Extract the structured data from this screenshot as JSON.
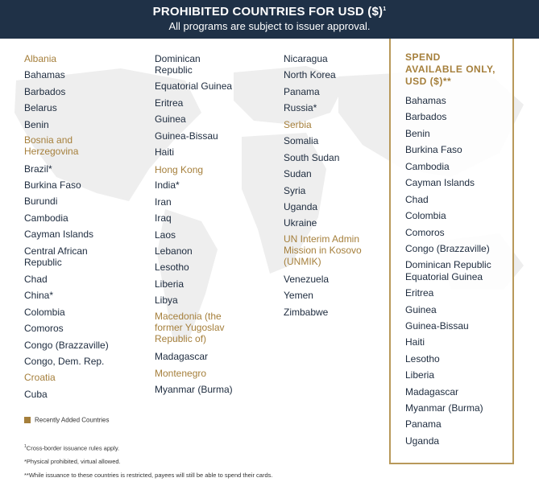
{
  "header": {
    "title": "PROHIBITED COUNTRIES FOR USD ($)",
    "title_mark": "1",
    "subtitle": "All programs are subject to issuer approval."
  },
  "colors": {
    "navy": "#1f3147",
    "gold": "#a57f3b",
    "text": "#1d2b3e"
  },
  "columns": [
    [
      {
        "name": "Albania",
        "recent": true
      },
      {
        "name": "Bahamas"
      },
      {
        "name": "Barbados"
      },
      {
        "name": "Belarus"
      },
      {
        "name": "Benin"
      },
      {
        "name": "Bosnia and Herzegovina",
        "recent": true
      },
      {
        "name": "Brazil*"
      },
      {
        "name": "Burkina Faso"
      },
      {
        "name": "Burundi"
      },
      {
        "name": "Cambodia"
      },
      {
        "name": "Cayman Islands"
      },
      {
        "name": "Central African Republic"
      },
      {
        "name": "Chad"
      },
      {
        "name": "China*"
      },
      {
        "name": "Colombia"
      },
      {
        "name": "Comoros"
      },
      {
        "name": "Congo (Brazzaville)"
      },
      {
        "name": "Congo, Dem. Rep."
      },
      {
        "name": "Croatia",
        "recent": true
      },
      {
        "name": "Cuba"
      }
    ],
    [
      {
        "name": "Dominican Republic"
      },
      {
        "name": "Equatorial Guinea"
      },
      {
        "name": "Eritrea"
      },
      {
        "name": "Guinea"
      },
      {
        "name": "Guinea-Bissau"
      },
      {
        "name": "Haiti"
      },
      {
        "name": "Hong Kong",
        "recent": true
      },
      {
        "name": "India*"
      },
      {
        "name": "Iran"
      },
      {
        "name": "Iraq"
      },
      {
        "name": "Laos"
      },
      {
        "name": "Lebanon"
      },
      {
        "name": "Lesotho"
      },
      {
        "name": "Liberia"
      },
      {
        "name": "Libya"
      },
      {
        "name": "Macedonia (the former Yugoslav Republic of)",
        "recent": true
      },
      {
        "name": "Madagascar"
      },
      {
        "name": "Montenegro",
        "recent": true
      },
      {
        "name": "Myanmar (Burma)"
      }
    ],
    [
      {
        "name": "Nicaragua"
      },
      {
        "name": "North Korea"
      },
      {
        "name": "Panama"
      },
      {
        "name": "Russia*"
      },
      {
        "name": "Serbia",
        "recent": true
      },
      {
        "name": "Somalia"
      },
      {
        "name": "South Sudan"
      },
      {
        "name": "Sudan"
      },
      {
        "name": "Syria"
      },
      {
        "name": "Uganda"
      },
      {
        "name": "Ukraine"
      },
      {
        "name": "UN Interim Admin Mission in Kosovo (UNMIK)",
        "recent": true
      },
      {
        "name": "Venezuela"
      },
      {
        "name": "Yemen"
      },
      {
        "name": "Zimbabwe"
      }
    ]
  ],
  "spend_only": {
    "heading_line1": "SPEND",
    "heading_line2": "AVAILABLE ONLY,",
    "heading_line3": "USD ($)**",
    "countries": [
      "Bahamas",
      "Barbados",
      "Benin",
      "Burkina Faso",
      "Cambodia",
      "Cayman Islands",
      "Chad",
      "Colombia",
      "Comoros",
      "Congo (Brazzaville)",
      "Dominican Republic",
      "Equatorial Guinea",
      "Eritrea",
      "Guinea",
      "Guinea-Bissau",
      "Haiti",
      "Lesotho",
      "Liberia",
      "Madagascar",
      "Myanmar (Burma)",
      "Panama",
      "Uganda"
    ]
  },
  "legend": {
    "label": "Recently Added Countries"
  },
  "footnotes": {
    "mark1": "1",
    "note1": "Cross-border issuance rules apply.",
    "note2": "*Physical prohibited, virtual allowed.",
    "note3": "**While issuance to these countries is restricted, payees will still be able to spend their cards."
  }
}
